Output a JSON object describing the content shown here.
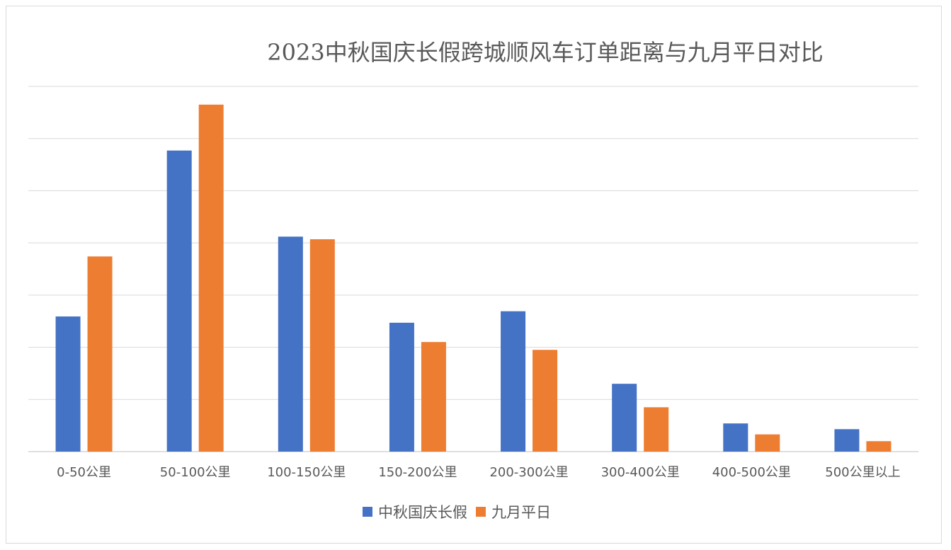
{
  "chart_data": {
    "type": "bar",
    "title": "2023中秋国庆长假跨城顺风车订单距离与九月平日对比",
    "xlabel": "",
    "ylabel": "",
    "categories": [
      "0-50公里",
      "50-100公里",
      "100-150公里",
      "150-200公里",
      "200-300公里",
      "300-400公里",
      "400-500公里",
      "500公里以上"
    ],
    "series": [
      {
        "name": "中秋国庆长假",
        "color": "#4472C4",
        "values": [
          2.59,
          5.77,
          4.12,
          2.47,
          2.69,
          1.3,
          0.54,
          0.43
        ]
      },
      {
        "name": "九月平日",
        "color": "#ED7D31",
        "values": [
          3.74,
          6.65,
          4.07,
          2.1,
          1.95,
          0.85,
          0.33,
          0.2
        ]
      }
    ],
    "ylim": [
      0,
      7
    ],
    "y_tick_labels_shown": false,
    "grid": true,
    "legend": "bottom"
  }
}
